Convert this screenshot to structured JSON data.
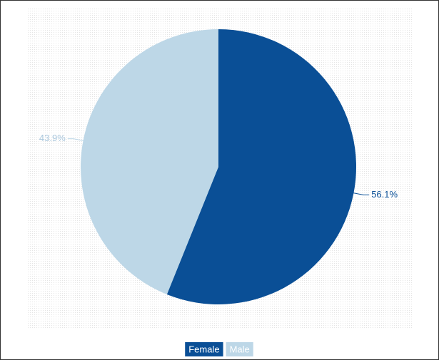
{
  "chart_data": {
    "type": "pie",
    "categories": [
      "Female",
      "Male"
    ],
    "values": [
      56.1,
      43.9
    ],
    "value_labels": [
      "56.1%",
      "43.9%"
    ],
    "colors": [
      "#0a4f96",
      "#bdd7e7"
    ],
    "legend": "bottom"
  }
}
